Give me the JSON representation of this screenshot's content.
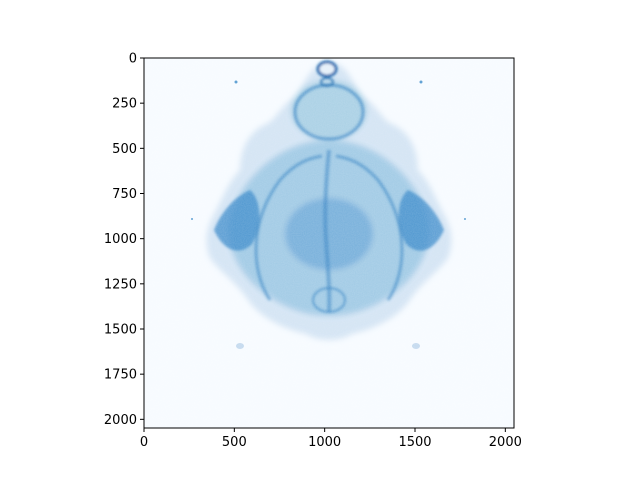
{
  "chart_data": {
    "type": "heatmap",
    "title": "",
    "xlabel": "",
    "ylabel": "",
    "xlim": [
      0,
      2048
    ],
    "ylim": [
      2048,
      0
    ],
    "x_ticks": [
      0,
      500,
      1000,
      1500,
      2000
    ],
    "y_ticks": [
      0,
      250,
      500,
      750,
      1000,
      1250,
      1500,
      1750,
      2000
    ],
    "colormap": "Blues",
    "colors": {
      "low": "#f7fbff",
      "mid": "#9ecae1",
      "high": "#2f7fc1",
      "dark": "#1c68ad"
    },
    "grid": false,
    "legend": "none",
    "description_shape": "buddhabrot-like density image (symmetric about x=1024)"
  }
}
